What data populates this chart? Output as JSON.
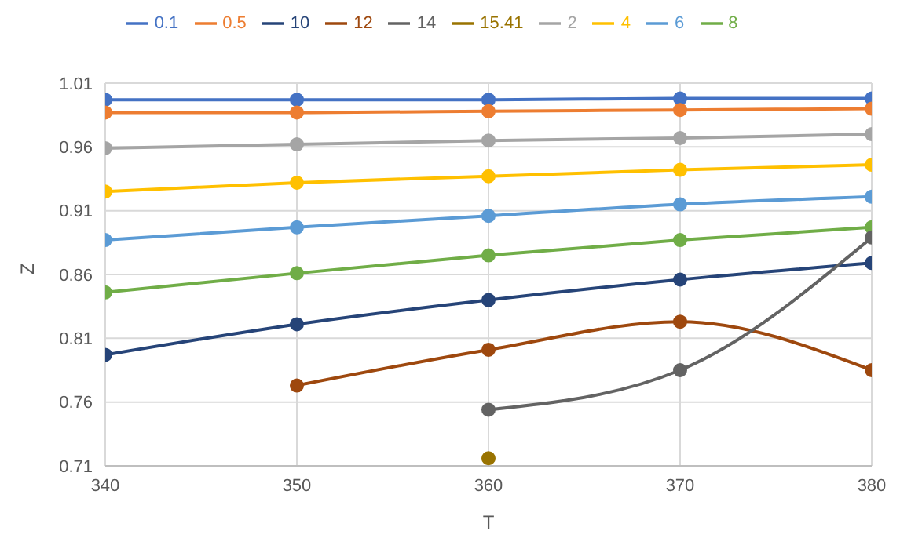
{
  "chart_data": {
    "type": "line",
    "xlabel": "T",
    "ylabel": "Z",
    "x": [
      340,
      350,
      360,
      370,
      380
    ],
    "xlim": [
      340,
      380
    ],
    "xticks": [
      340,
      350,
      360,
      370,
      380
    ],
    "ylim": [
      0.71,
      1.01
    ],
    "yticks": [
      0.71,
      0.76,
      0.81,
      0.86,
      0.91,
      0.96,
      1.01
    ],
    "grid": true,
    "legend": "top",
    "marker": "circle",
    "line_style": "solid",
    "series": [
      {
        "name": "0.1",
        "color": "#4472c4",
        "values": [
          0.997,
          0.997,
          0.997,
          0.998,
          0.998
        ]
      },
      {
        "name": "0.5",
        "color": "#ed7d31",
        "values": [
          0.987,
          0.987,
          0.988,
          0.989,
          0.99
        ]
      },
      {
        "name": "2",
        "color": "#a5a5a5",
        "values": [
          0.959,
          0.962,
          0.965,
          0.967,
          0.97
        ]
      },
      {
        "name": "4",
        "color": "#ffc000",
        "values": [
          0.925,
          0.932,
          0.937,
          0.942,
          0.946
        ]
      },
      {
        "name": "6",
        "color": "#5b9bd5",
        "values": [
          0.887,
          0.897,
          0.906,
          0.915,
          0.921
        ]
      },
      {
        "name": "8",
        "color": "#70ad47",
        "values": [
          0.846,
          0.861,
          0.875,
          0.887,
          0.897
        ]
      },
      {
        "name": "10",
        "color": "#264478",
        "values": [
          0.797,
          0.821,
          0.84,
          0.856,
          0.869
        ]
      },
      {
        "name": "12",
        "color": "#9e480e",
        "values": [
          null,
          0.773,
          0.801,
          0.823,
          0.785
        ]
      },
      {
        "name": "14",
        "color": "#636363",
        "values": [
          null,
          null,
          0.754,
          0.785,
          0.889
        ]
      },
      {
        "name": "15.41",
        "color": "#997300",
        "values": [
          null,
          null,
          0.716,
          null,
          null
        ]
      }
    ]
  }
}
